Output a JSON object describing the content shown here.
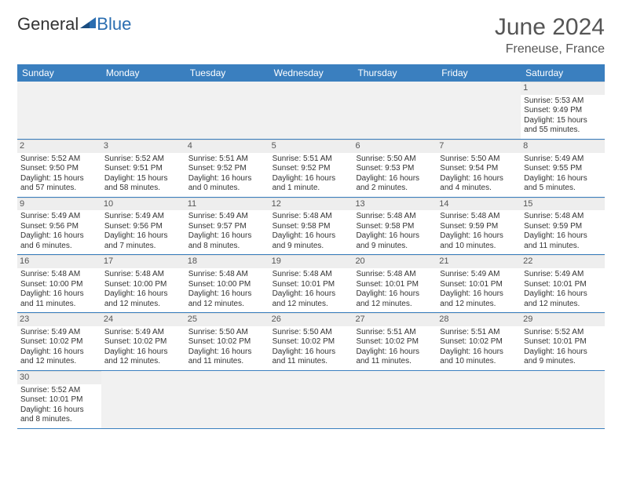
{
  "logo": {
    "general": "General",
    "blue": "Blue"
  },
  "title": "June 2024",
  "location": "Freneuse, France",
  "day_headers": [
    "Sunday",
    "Monday",
    "Tuesday",
    "Wednesday",
    "Thursday",
    "Friday",
    "Saturday"
  ],
  "colors": {
    "header_bg": "#3a7fbf",
    "header_text": "#ffffff",
    "daynum_bg": "#eeeeee",
    "border": "#3a7fbf",
    "empty_bg": "#f1f1f1"
  },
  "weeks": [
    [
      null,
      null,
      null,
      null,
      null,
      null,
      {
        "n": "1",
        "sunrise": "Sunrise: 5:53 AM",
        "sunset": "Sunset: 9:49 PM",
        "daylight1": "Daylight: 15 hours",
        "daylight2": "and 55 minutes."
      }
    ],
    [
      {
        "n": "2",
        "sunrise": "Sunrise: 5:52 AM",
        "sunset": "Sunset: 9:50 PM",
        "daylight1": "Daylight: 15 hours",
        "daylight2": "and 57 minutes."
      },
      {
        "n": "3",
        "sunrise": "Sunrise: 5:52 AM",
        "sunset": "Sunset: 9:51 PM",
        "daylight1": "Daylight: 15 hours",
        "daylight2": "and 58 minutes."
      },
      {
        "n": "4",
        "sunrise": "Sunrise: 5:51 AM",
        "sunset": "Sunset: 9:52 PM",
        "daylight1": "Daylight: 16 hours",
        "daylight2": "and 0 minutes."
      },
      {
        "n": "5",
        "sunrise": "Sunrise: 5:51 AM",
        "sunset": "Sunset: 9:52 PM",
        "daylight1": "Daylight: 16 hours",
        "daylight2": "and 1 minute."
      },
      {
        "n": "6",
        "sunrise": "Sunrise: 5:50 AM",
        "sunset": "Sunset: 9:53 PM",
        "daylight1": "Daylight: 16 hours",
        "daylight2": "and 2 minutes."
      },
      {
        "n": "7",
        "sunrise": "Sunrise: 5:50 AM",
        "sunset": "Sunset: 9:54 PM",
        "daylight1": "Daylight: 16 hours",
        "daylight2": "and 4 minutes."
      },
      {
        "n": "8",
        "sunrise": "Sunrise: 5:49 AM",
        "sunset": "Sunset: 9:55 PM",
        "daylight1": "Daylight: 16 hours",
        "daylight2": "and 5 minutes."
      }
    ],
    [
      {
        "n": "9",
        "sunrise": "Sunrise: 5:49 AM",
        "sunset": "Sunset: 9:56 PM",
        "daylight1": "Daylight: 16 hours",
        "daylight2": "and 6 minutes."
      },
      {
        "n": "10",
        "sunrise": "Sunrise: 5:49 AM",
        "sunset": "Sunset: 9:56 PM",
        "daylight1": "Daylight: 16 hours",
        "daylight2": "and 7 minutes."
      },
      {
        "n": "11",
        "sunrise": "Sunrise: 5:49 AM",
        "sunset": "Sunset: 9:57 PM",
        "daylight1": "Daylight: 16 hours",
        "daylight2": "and 8 minutes."
      },
      {
        "n": "12",
        "sunrise": "Sunrise: 5:48 AM",
        "sunset": "Sunset: 9:58 PM",
        "daylight1": "Daylight: 16 hours",
        "daylight2": "and 9 minutes."
      },
      {
        "n": "13",
        "sunrise": "Sunrise: 5:48 AM",
        "sunset": "Sunset: 9:58 PM",
        "daylight1": "Daylight: 16 hours",
        "daylight2": "and 9 minutes."
      },
      {
        "n": "14",
        "sunrise": "Sunrise: 5:48 AM",
        "sunset": "Sunset: 9:59 PM",
        "daylight1": "Daylight: 16 hours",
        "daylight2": "and 10 minutes."
      },
      {
        "n": "15",
        "sunrise": "Sunrise: 5:48 AM",
        "sunset": "Sunset: 9:59 PM",
        "daylight1": "Daylight: 16 hours",
        "daylight2": "and 11 minutes."
      }
    ],
    [
      {
        "n": "16",
        "sunrise": "Sunrise: 5:48 AM",
        "sunset": "Sunset: 10:00 PM",
        "daylight1": "Daylight: 16 hours",
        "daylight2": "and 11 minutes."
      },
      {
        "n": "17",
        "sunrise": "Sunrise: 5:48 AM",
        "sunset": "Sunset: 10:00 PM",
        "daylight1": "Daylight: 16 hours",
        "daylight2": "and 12 minutes."
      },
      {
        "n": "18",
        "sunrise": "Sunrise: 5:48 AM",
        "sunset": "Sunset: 10:00 PM",
        "daylight1": "Daylight: 16 hours",
        "daylight2": "and 12 minutes."
      },
      {
        "n": "19",
        "sunrise": "Sunrise: 5:48 AM",
        "sunset": "Sunset: 10:01 PM",
        "daylight1": "Daylight: 16 hours",
        "daylight2": "and 12 minutes."
      },
      {
        "n": "20",
        "sunrise": "Sunrise: 5:48 AM",
        "sunset": "Sunset: 10:01 PM",
        "daylight1": "Daylight: 16 hours",
        "daylight2": "and 12 minutes."
      },
      {
        "n": "21",
        "sunrise": "Sunrise: 5:49 AM",
        "sunset": "Sunset: 10:01 PM",
        "daylight1": "Daylight: 16 hours",
        "daylight2": "and 12 minutes."
      },
      {
        "n": "22",
        "sunrise": "Sunrise: 5:49 AM",
        "sunset": "Sunset: 10:01 PM",
        "daylight1": "Daylight: 16 hours",
        "daylight2": "and 12 minutes."
      }
    ],
    [
      {
        "n": "23",
        "sunrise": "Sunrise: 5:49 AM",
        "sunset": "Sunset: 10:02 PM",
        "daylight1": "Daylight: 16 hours",
        "daylight2": "and 12 minutes."
      },
      {
        "n": "24",
        "sunrise": "Sunrise: 5:49 AM",
        "sunset": "Sunset: 10:02 PM",
        "daylight1": "Daylight: 16 hours",
        "daylight2": "and 12 minutes."
      },
      {
        "n": "25",
        "sunrise": "Sunrise: 5:50 AM",
        "sunset": "Sunset: 10:02 PM",
        "daylight1": "Daylight: 16 hours",
        "daylight2": "and 11 minutes."
      },
      {
        "n": "26",
        "sunrise": "Sunrise: 5:50 AM",
        "sunset": "Sunset: 10:02 PM",
        "daylight1": "Daylight: 16 hours",
        "daylight2": "and 11 minutes."
      },
      {
        "n": "27",
        "sunrise": "Sunrise: 5:51 AM",
        "sunset": "Sunset: 10:02 PM",
        "daylight1": "Daylight: 16 hours",
        "daylight2": "and 11 minutes."
      },
      {
        "n": "28",
        "sunrise": "Sunrise: 5:51 AM",
        "sunset": "Sunset: 10:02 PM",
        "daylight1": "Daylight: 16 hours",
        "daylight2": "and 10 minutes."
      },
      {
        "n": "29",
        "sunrise": "Sunrise: 5:52 AM",
        "sunset": "Sunset: 10:01 PM",
        "daylight1": "Daylight: 16 hours",
        "daylight2": "and 9 minutes."
      }
    ],
    [
      {
        "n": "30",
        "sunrise": "Sunrise: 5:52 AM",
        "sunset": "Sunset: 10:01 PM",
        "daylight1": "Daylight: 16 hours",
        "daylight2": "and 8 minutes."
      },
      null,
      null,
      null,
      null,
      null,
      null
    ]
  ]
}
